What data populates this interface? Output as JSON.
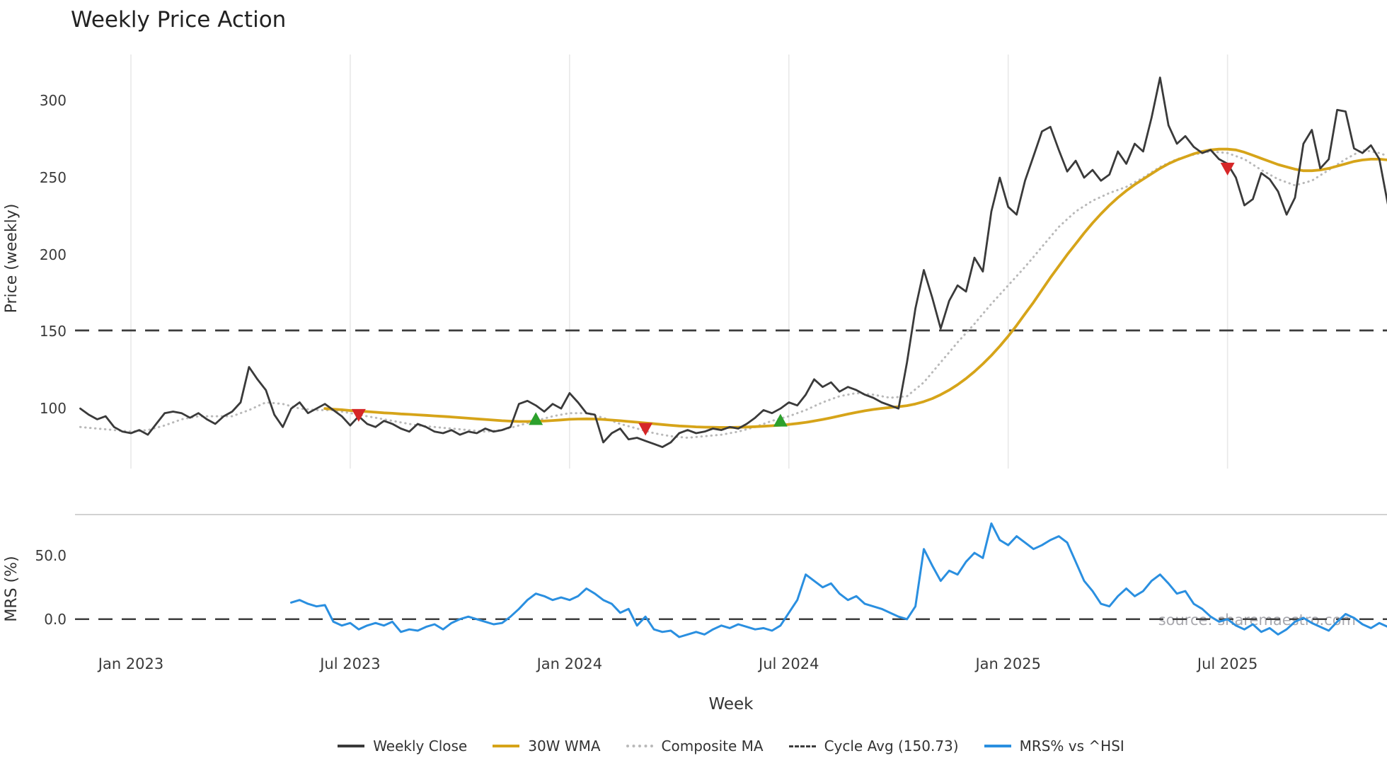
{
  "chart": {
    "title": "Weekly Price Action",
    "xlabel": "Week",
    "watermark": "source: sharemaestro.com"
  },
  "chart_data": [
    {
      "type": "line",
      "panel": "price",
      "title": "Weekly Price Action",
      "ylabel": "Price (weekly)",
      "ylim": [
        61,
        330
      ],
      "grid": "vertical-light",
      "x_ticks": [
        {
          "week": 6,
          "label": "Jan 2023"
        },
        {
          "week": 32,
          "label": "Jul 2023"
        },
        {
          "week": 58,
          "label": "Jan 2024"
        },
        {
          "week": 84,
          "label": "Jul 2024"
        },
        {
          "week": 110,
          "label": "Jan 2025"
        },
        {
          "week": 136,
          "label": "Jul 2025"
        }
      ],
      "y_ticks": [
        {
          "value": 300,
          "label": "300"
        },
        {
          "value": 250,
          "label": "250"
        },
        {
          "value": 200,
          "label": "200"
        },
        {
          "value": 150,
          "label": "150"
        },
        {
          "value": 100,
          "label": "100"
        }
      ],
      "series": [
        {
          "name": "Weekly Close",
          "color": "#3a3a3a",
          "style": "solid",
          "start_week": 0,
          "values": [
            100,
            96,
            93,
            95,
            88,
            85,
            84,
            86,
            83,
            90,
            97,
            98,
            97,
            94,
            97,
            93,
            90,
            95,
            98,
            104,
            127,
            119,
            112,
            96,
            88,
            100,
            104,
            97,
            100,
            103,
            99,
            95,
            89,
            95,
            90,
            88,
            92,
            90,
            87,
            85,
            90,
            88,
            85,
            84,
            86,
            83,
            85,
            84,
            87,
            85,
            86,
            88,
            103,
            105,
            102,
            98,
            103,
            100,
            110,
            104,
            97,
            96,
            78,
            84,
            87,
            80,
            81,
            79,
            77,
            75,
            78,
            84,
            86,
            84,
            85,
            87,
            86,
            88,
            87,
            90,
            94,
            99,
            97,
            100,
            104,
            102,
            109,
            119,
            114,
            117,
            111,
            114,
            112,
            109,
            107,
            104,
            102,
            100,
            130,
            165,
            190,
            172,
            152,
            170,
            180,
            176,
            198,
            189,
            228,
            250,
            231,
            226,
            248,
            264,
            280,
            283,
            268,
            254,
            261,
            250,
            255,
            248,
            252,
            267,
            259,
            272,
            267,
            289,
            315,
            284,
            272,
            277,
            270,
            266,
            268,
            262,
            259,
            250,
            232,
            236,
            253,
            249,
            241,
            226,
            237,
            272,
            281,
            256,
            262,
            294,
            293,
            269,
            266,
            271,
            262,
            233
          ]
        },
        {
          "name": "30W WMA",
          "color": "#d6a419",
          "style": "solid",
          "start_week": 29,
          "values": [
            100,
            99.6,
            99.2,
            98.7,
            98.3,
            98,
            97.6,
            97.2,
            96.9,
            96.5,
            96.2,
            95.9,
            95.6,
            95.2,
            94.9,
            94.5,
            94.1,
            93.7,
            93.3,
            92.9,
            92.5,
            92.1,
            91.8,
            91.6,
            91.6,
            91.7,
            91.9,
            92.2,
            92.6,
            93,
            93.2,
            93.3,
            93.2,
            92.9,
            92.5,
            92.1,
            91.6,
            91.1,
            90.6,
            90.1,
            89.6,
            89.1,
            88.7,
            88.4,
            88.1,
            87.9,
            87.8,
            87.7,
            87.7,
            87.8,
            88,
            88.2,
            88.5,
            88.8,
            89.2,
            89.7,
            90.3,
            91,
            91.9,
            92.9,
            94,
            95.2,
            96.4,
            97.5,
            98.5,
            99.4,
            100.1,
            100.7,
            101.2,
            101.9,
            103,
            104.5,
            106.5,
            109,
            112,
            115.5,
            119.5,
            124,
            129,
            134.5,
            140.5,
            147,
            154,
            161.5,
            169,
            177,
            185,
            192.5,
            200,
            207,
            214,
            220.5,
            226.5,
            232,
            237,
            241.5,
            245.5,
            249,
            252.5,
            256,
            259,
            261.5,
            263.5,
            265.5,
            267,
            268,
            268.5,
            268.5,
            268,
            266.5,
            264.5,
            262.5,
            260.5,
            258.5,
            257,
            255.5,
            254.5,
            254.5,
            255,
            256,
            257.5,
            259,
            260.5,
            261.5,
            262,
            262,
            261.5
          ]
        },
        {
          "name": "Composite MA",
          "color": "#b9b9b9",
          "style": "dotted",
          "start_week": 0,
          "values": [
            88,
            87.5,
            87,
            86.5,
            86,
            85.5,
            85,
            85.5,
            86,
            87.5,
            89,
            91,
            93,
            94,
            95,
            95,
            95,
            95,
            95,
            97,
            99,
            101.5,
            104,
            103.5,
            103,
            101.5,
            100,
            99.5,
            99,
            99,
            99,
            98,
            97,
            96,
            95,
            94,
            93,
            92,
            91,
            90,
            89,
            88.5,
            88,
            87.5,
            87,
            86.5,
            86,
            85.5,
            85,
            85.5,
            86,
            87.5,
            89,
            90.5,
            92,
            93.5,
            95,
            96,
            97,
            97,
            97,
            95.5,
            94,
            92,
            90,
            88.5,
            87,
            85.5,
            84,
            83,
            82,
            81.5,
            81,
            81.5,
            82,
            82.5,
            83,
            84,
            85,
            86.5,
            88,
            90,
            92,
            93.5,
            95,
            97,
            99,
            101.5,
            104,
            106,
            108,
            109,
            110,
            109.5,
            109,
            108,
            107,
            107.5,
            108,
            112.5,
            117,
            123.5,
            130,
            136.5,
            143,
            149,
            155,
            161.5,
            168,
            174,
            180,
            186,
            192,
            198.5,
            205,
            211.5,
            218,
            223,
            228,
            231.5,
            235,
            237.5,
            240,
            242,
            244,
            247,
            250,
            253.5,
            257,
            259.5,
            262,
            263.5,
            265,
            266,
            267,
            266.5,
            266,
            264,
            262,
            258.5,
            255,
            252,
            249,
            247,
            245,
            246.5,
            248,
            251.5,
            255,
            258.5,
            262,
            265,
            268,
            267,
            266,
            264
          ]
        },
        {
          "name": "Cycle Avg (150.73)",
          "color": "#3d3d3d",
          "style": "dashed",
          "constant": 150.73
        }
      ],
      "signals": {
        "buy": {
          "color": "#2ca02c",
          "points": [
            {
              "week": 54,
              "price": 93
            },
            {
              "week": 83,
              "price": 92
            }
          ]
        },
        "sell": {
          "color": "#d62728",
          "points": [
            {
              "week": 33,
              "price": 96
            },
            {
              "week": 67,
              "price": 87
            },
            {
              "week": 136,
              "price": 256
            }
          ]
        }
      }
    },
    {
      "type": "line",
      "panel": "mrs",
      "ylabel": "MRS (%)",
      "ylim": [
        -24,
        82
      ],
      "y_ticks": [
        {
          "value": 50,
          "label": "50.0"
        },
        {
          "value": 0,
          "label": "0.0"
        }
      ],
      "series": [
        {
          "name": "MRS% vs ^HSI",
          "color": "#2a8fe0",
          "style": "solid",
          "start_week": 25,
          "values": [
            13,
            15,
            12,
            10,
            11,
            -2,
            -5,
            -3,
            -8,
            -5,
            -3,
            -5,
            -2,
            -10,
            -8,
            -9,
            -6,
            -4,
            -8,
            -3,
            0,
            2,
            0,
            -2,
            -4,
            -3,
            2,
            8,
            15,
            20,
            18,
            15,
            17,
            15,
            18,
            24,
            20,
            15,
            12,
            5,
            8,
            -5,
            2,
            -8,
            -10,
            -9,
            -14,
            -12,
            -10,
            -12,
            -8,
            -5,
            -7,
            -4,
            -6,
            -8,
            -7,
            -9,
            -5,
            5,
            15,
            35,
            30,
            25,
            28,
            20,
            15,
            18,
            12,
            10,
            8,
            5,
            2,
            0,
            10,
            55,
            42,
            30,
            38,
            35,
            45,
            52,
            48,
            75,
            62,
            58,
            65,
            60,
            55,
            58,
            62,
            65,
            60,
            45,
            30,
            22,
            12,
            10,
            18,
            24,
            18,
            22,
            30,
            35,
            28,
            20,
            22,
            12,
            8,
            2,
            -2,
            0,
            -5,
            -8,
            -4,
            -10,
            -7,
            -12,
            -8,
            -2,
            1,
            -3,
            -6,
            -9,
            -2,
            4,
            1,
            -4,
            -7,
            -3,
            -6
          ]
        },
        {
          "name": "Zero Line",
          "color": "#3d3d3d",
          "style": "dashed",
          "constant": 0
        }
      ]
    }
  ],
  "legend": [
    {
      "label": "Weekly Close",
      "color": "#3a3a3a",
      "style": "solid"
    },
    {
      "label": "30W WMA",
      "color": "#d6a419",
      "style": "solid"
    },
    {
      "label": "Composite MA",
      "color": "#b9b9b9",
      "style": "dotted"
    },
    {
      "label": "Cycle Avg (150.73)",
      "color": "#3d3d3d",
      "style": "dashed"
    },
    {
      "label": "MRS% vs ^HSI",
      "color": "#2a8fe0",
      "style": "solid"
    }
  ]
}
